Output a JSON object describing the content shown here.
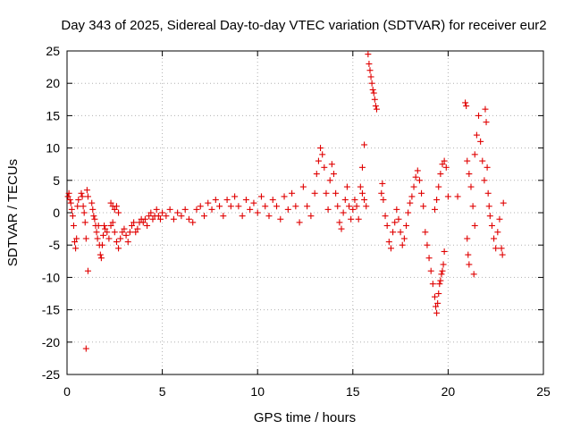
{
  "chart_data": {
    "type": "scatter",
    "title": "Day 343 of 2025, Sidereal Day-to-day VTEC variation (SDTVAR) for receiver eur2",
    "xlabel": "GPS time / hours",
    "ylabel": "SDTVAR / TECUs",
    "xlim": [
      0,
      25
    ],
    "ylim": [
      -25,
      25
    ],
    "xticks": [
      0,
      5,
      10,
      15,
      20,
      25
    ],
    "yticks": [
      -25,
      -20,
      -15,
      -10,
      -5,
      0,
      5,
      10,
      15,
      20,
      25
    ],
    "grid": true,
    "marker": "+",
    "color": "#e00000",
    "series": [
      {
        "name": "SDTVAR",
        "points": [
          [
            0.05,
            2.5
          ],
          [
            0.1,
            3.0
          ],
          [
            0.15,
            2.0
          ],
          [
            0.2,
            1.5
          ],
          [
            0.25,
            0.5
          ],
          [
            0.3,
            -0.5
          ],
          [
            0.35,
            -2.0
          ],
          [
            0.4,
            -4.5
          ],
          [
            0.45,
            -5.5
          ],
          [
            0.5,
            -4.0
          ],
          [
            0.55,
            1.0
          ],
          [
            0.6,
            2.0
          ],
          [
            0.75,
            3.0
          ],
          [
            0.8,
            2.5
          ],
          [
            0.85,
            1.0
          ],
          [
            0.9,
            0.0
          ],
          [
            0.95,
            -1.5
          ],
          [
            1.0,
            -4.0
          ],
          [
            1.05,
            3.5
          ],
          [
            1.1,
            2.5
          ],
          [
            1.0,
            -21.0
          ],
          [
            1.1,
            -9.0
          ],
          [
            1.3,
            1.5
          ],
          [
            1.35,
            0.5
          ],
          [
            1.4,
            -0.5
          ],
          [
            1.45,
            -1.0
          ],
          [
            1.5,
            -2.0
          ],
          [
            1.55,
            -3.0
          ],
          [
            1.6,
            -4.0
          ],
          [
            1.65,
            -2.0
          ],
          [
            1.7,
            -5.0
          ],
          [
            1.75,
            -6.5
          ],
          [
            1.8,
            -7.0
          ],
          [
            1.85,
            -5.0
          ],
          [
            1.9,
            -3.5
          ],
          [
            1.95,
            -2.0
          ],
          [
            2.0,
            -2.5
          ],
          [
            2.1,
            -3.0
          ],
          [
            2.2,
            -4.0
          ],
          [
            2.3,
            -2.0
          ],
          [
            2.4,
            -1.5
          ],
          [
            2.5,
            -3.0
          ],
          [
            2.6,
            -4.5
          ],
          [
            2.7,
            -5.5
          ],
          [
            2.8,
            -4.0
          ],
          [
            2.9,
            -3.0
          ],
          [
            2.3,
            1.5
          ],
          [
            2.4,
            1.0
          ],
          [
            2.5,
            0.5
          ],
          [
            2.6,
            1.0
          ],
          [
            2.7,
            0.0
          ],
          [
            3.0,
            -2.5
          ],
          [
            3.1,
            -3.5
          ],
          [
            3.2,
            -4.5
          ],
          [
            3.3,
            -3.0
          ],
          [
            3.4,
            -2.0
          ],
          [
            3.5,
            -1.5
          ],
          [
            3.6,
            -3.0
          ],
          [
            3.7,
            -2.5
          ],
          [
            3.8,
            -1.5
          ],
          [
            3.9,
            -1.0
          ],
          [
            4.0,
            -1.5
          ],
          [
            4.1,
            -1.0
          ],
          [
            4.2,
            -2.0
          ],
          [
            4.3,
            -0.5
          ],
          [
            4.4,
            0.0
          ],
          [
            4.5,
            -1.0
          ],
          [
            4.6,
            -0.5
          ],
          [
            4.7,
            0.5
          ],
          [
            4.8,
            -0.5
          ],
          [
            4.9,
            -1.0
          ],
          [
            5.0,
            0.0
          ],
          [
            5.2,
            -0.5
          ],
          [
            5.4,
            0.5
          ],
          [
            5.6,
            -1.0
          ],
          [
            5.8,
            0.0
          ],
          [
            6.0,
            -0.5
          ],
          [
            6.2,
            0.5
          ],
          [
            6.4,
            -1.0
          ],
          [
            6.6,
            -1.5
          ],
          [
            6.8,
            0.5
          ],
          [
            7.0,
            1.0
          ],
          [
            7.2,
            -0.5
          ],
          [
            7.4,
            1.5
          ],
          [
            7.6,
            0.5
          ],
          [
            7.8,
            2.0
          ],
          [
            8.0,
            1.0
          ],
          [
            8.2,
            -0.5
          ],
          [
            8.4,
            2.0
          ],
          [
            8.6,
            1.0
          ],
          [
            8.8,
            2.5
          ],
          [
            9.0,
            1.0
          ],
          [
            9.2,
            -0.5
          ],
          [
            9.4,
            2.0
          ],
          [
            9.6,
            0.5
          ],
          [
            9.8,
            1.5
          ],
          [
            10.0,
            0.0
          ],
          [
            10.2,
            2.5
          ],
          [
            10.4,
            1.0
          ],
          [
            10.6,
            -0.5
          ],
          [
            10.8,
            2.0
          ],
          [
            11.0,
            1.0
          ],
          [
            11.2,
            -1.0
          ],
          [
            11.4,
            2.5
          ],
          [
            11.6,
            0.5
          ],
          [
            11.8,
            3.0
          ],
          [
            12.0,
            1.0
          ],
          [
            12.2,
            -1.5
          ],
          [
            12.4,
            4.0
          ],
          [
            12.6,
            1.0
          ],
          [
            12.8,
            -0.5
          ],
          [
            13.0,
            3.0
          ],
          [
            13.1,
            6.0
          ],
          [
            13.2,
            8.0
          ],
          [
            13.3,
            10.0
          ],
          [
            13.4,
            9.0
          ],
          [
            13.5,
            7.0
          ],
          [
            13.6,
            3.0
          ],
          [
            13.7,
            0.5
          ],
          [
            13.8,
            5.0
          ],
          [
            13.9,
            7.5
          ],
          [
            14.0,
            6.0
          ],
          [
            14.1,
            3.0
          ],
          [
            14.2,
            1.0
          ],
          [
            14.3,
            -1.5
          ],
          [
            14.4,
            -2.5
          ],
          [
            14.5,
            0.0
          ],
          [
            14.6,
            2.0
          ],
          [
            14.7,
            4.0
          ],
          [
            14.8,
            1.0
          ],
          [
            14.9,
            -1.0
          ],
          [
            15.0,
            0.5
          ],
          [
            15.1,
            2.0
          ],
          [
            15.2,
            1.0
          ],
          [
            15.3,
            -1.0
          ],
          [
            15.4,
            4.0
          ],
          [
            15.5,
            3.0
          ],
          [
            15.6,
            2.0
          ],
          [
            15.7,
            1.0
          ],
          [
            15.5,
            7.0
          ],
          [
            15.6,
            10.5
          ],
          [
            15.8,
            24.5
          ],
          [
            15.85,
            23.0
          ],
          [
            15.9,
            22.0
          ],
          [
            15.95,
            21.0
          ],
          [
            16.0,
            20.0
          ],
          [
            16.05,
            19.0
          ],
          [
            16.1,
            18.5
          ],
          [
            16.15,
            17.5
          ],
          [
            16.2,
            16.5
          ],
          [
            16.25,
            16.0
          ],
          [
            16.5,
            3.0
          ],
          [
            16.55,
            4.5
          ],
          [
            16.6,
            2.0
          ],
          [
            16.7,
            -0.5
          ],
          [
            16.8,
            -2.0
          ],
          [
            16.9,
            -4.5
          ],
          [
            17.0,
            -5.5
          ],
          [
            17.1,
            -3.0
          ],
          [
            17.2,
            -1.5
          ],
          [
            17.3,
            0.5
          ],
          [
            17.4,
            -1.0
          ],
          [
            17.5,
            -3.0
          ],
          [
            17.6,
            -5.0
          ],
          [
            17.7,
            -4.0
          ],
          [
            17.8,
            -2.0
          ],
          [
            17.9,
            0.0
          ],
          [
            18.0,
            1.5
          ],
          [
            18.1,
            2.5
          ],
          [
            18.2,
            4.0
          ],
          [
            18.3,
            5.5
          ],
          [
            18.4,
            6.5
          ],
          [
            18.5,
            5.0
          ],
          [
            18.6,
            3.0
          ],
          [
            18.7,
            1.0
          ],
          [
            18.8,
            -3.0
          ],
          [
            18.9,
            -5.0
          ],
          [
            19.0,
            -7.0
          ],
          [
            19.1,
            -9.0
          ],
          [
            19.2,
            -11.0
          ],
          [
            19.3,
            -13.0
          ],
          [
            19.35,
            -14.5
          ],
          [
            19.4,
            -15.5
          ],
          [
            19.45,
            -14.0
          ],
          [
            19.5,
            -12.5
          ],
          [
            19.55,
            -11.0
          ],
          [
            19.6,
            -10.5
          ],
          [
            19.65,
            -9.5
          ],
          [
            19.7,
            -9.0
          ],
          [
            19.75,
            -8.0
          ],
          [
            19.8,
            -6.0
          ],
          [
            19.3,
            0.5
          ],
          [
            19.4,
            2.0
          ],
          [
            19.5,
            4.0
          ],
          [
            19.6,
            6.0
          ],
          [
            19.7,
            7.5
          ],
          [
            19.8,
            8.0
          ],
          [
            19.9,
            7.0
          ],
          [
            20.0,
            2.5
          ],
          [
            20.5,
            2.5
          ],
          [
            20.9,
            17.0
          ],
          [
            20.95,
            16.5
          ],
          [
            21.0,
            8.0
          ],
          [
            21.1,
            6.0
          ],
          [
            21.2,
            4.0
          ],
          [
            21.3,
            1.0
          ],
          [
            21.4,
            -2.0
          ],
          [
            21.0,
            -4.0
          ],
          [
            21.05,
            -6.5
          ],
          [
            21.1,
            -8.0
          ],
          [
            21.35,
            -9.5
          ],
          [
            21.4,
            9.0
          ],
          [
            21.5,
            12.0
          ],
          [
            21.6,
            15.0
          ],
          [
            21.7,
            11.0
          ],
          [
            21.8,
            8.0
          ],
          [
            21.9,
            5.0
          ],
          [
            21.95,
            16.0
          ],
          [
            22.0,
            14.0
          ],
          [
            22.05,
            7.0
          ],
          [
            22.1,
            3.0
          ],
          [
            22.15,
            1.0
          ],
          [
            22.2,
            -0.5
          ],
          [
            22.3,
            -2.0
          ],
          [
            22.4,
            -4.0
          ],
          [
            22.5,
            -5.5
          ],
          [
            22.6,
            -3.0
          ],
          [
            22.7,
            -1.0
          ],
          [
            22.8,
            -5.5
          ],
          [
            22.85,
            -6.5
          ],
          [
            22.9,
            1.5
          ]
        ]
      }
    ]
  }
}
